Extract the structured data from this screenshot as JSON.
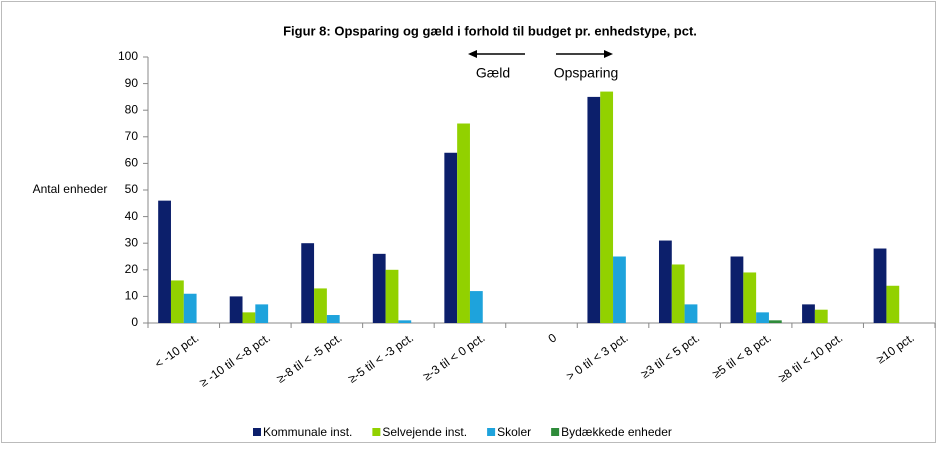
{
  "chart_data": {
    "type": "bar",
    "title": "Figur 8: Opsparing og gæld i forhold til budget pr. enhedstype, pct.",
    "y_label": "Antal enheder",
    "annotations": [
      "Gæld",
      "Opsparing"
    ],
    "categories": [
      "< -10 pct.",
      "≥ -10 til <-8 pct.",
      "≥-8 til < -5 pct.",
      "≥-5 til < -3 pct.",
      "≥-3 til < 0 pct.",
      "0",
      "> 0 til < 3 pct.",
      "≥3 til < 5 pct.",
      "≥5 til < 8 pct.",
      "≥8 til < 10 pct.",
      "≥10 pct."
    ],
    "series": [
      {
        "name": "Kommunale inst.",
        "color": "#0c1f6b",
        "values": [
          46,
          10,
          30,
          26,
          64,
          0,
          85,
          31,
          25,
          7,
          28
        ]
      },
      {
        "name": "Selvejende inst.",
        "color": "#92d100",
        "values": [
          16,
          4,
          13,
          20,
          75,
          0,
          87,
          22,
          19,
          5,
          14
        ]
      },
      {
        "name": "Skoler",
        "color": "#1ea3dc",
        "values": [
          11,
          7,
          3,
          1,
          12,
          0,
          25,
          7,
          4,
          0,
          0
        ]
      },
      {
        "name": "Bydækkede enheder",
        "color": "#2e8b3a",
        "values": [
          0,
          0,
          0,
          0,
          0,
          0,
          0,
          0,
          1,
          0,
          0
        ]
      }
    ],
    "ylim": [
      0,
      100
    ],
    "yticks": [
      0,
      10,
      20,
      30,
      40,
      50,
      60,
      70,
      80,
      90,
      100
    ],
    "grid": false,
    "legend": "bottom"
  }
}
